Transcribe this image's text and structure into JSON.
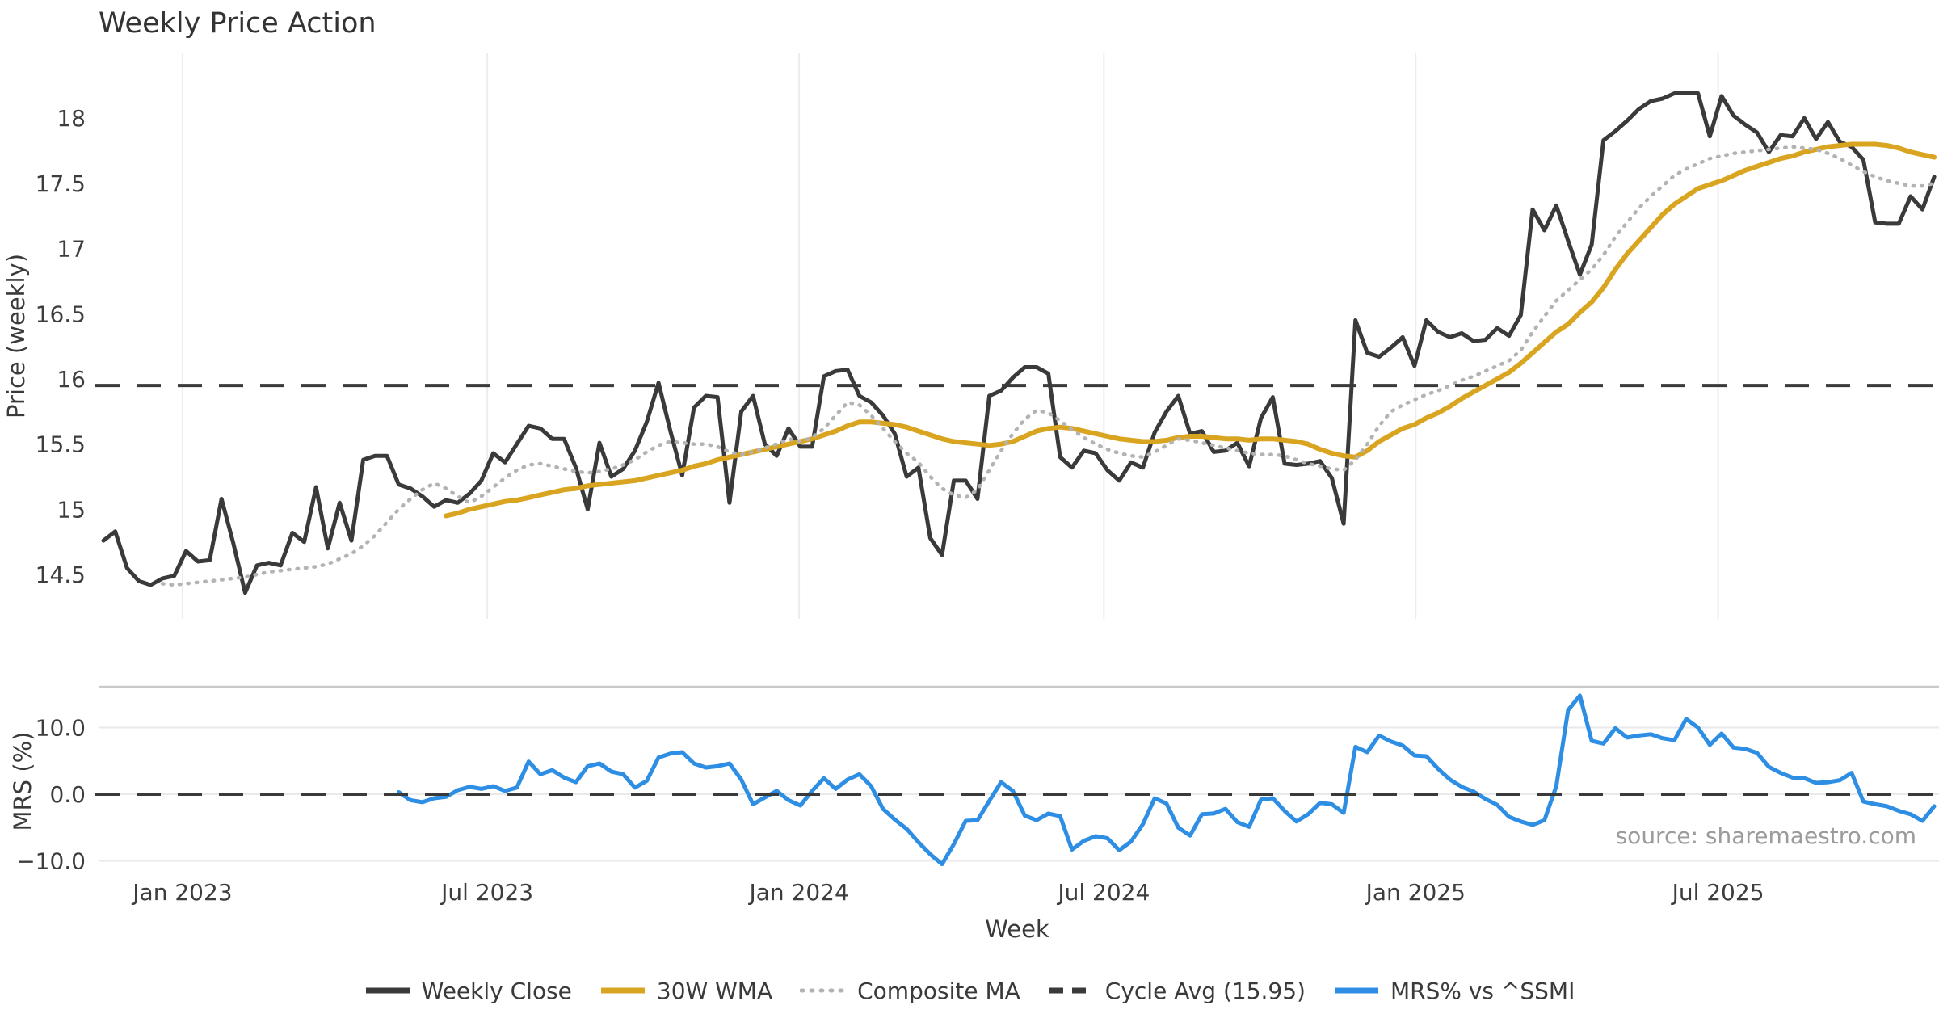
{
  "title": "Weekly Price Action",
  "axes": {
    "price_label": "Price (weekly)",
    "mrs_label": "MRS (%)",
    "x_label": "Week"
  },
  "source": "source: sharemaestro.com",
  "colors": {
    "close": "#3A3A3A",
    "wma": "#D9A521",
    "composite": "#B3B3B3",
    "cycle": "#3A3A3A",
    "mrs": "#2D8EE3",
    "grid_vertical": "#ECECF1",
    "grid_horizontal": "#E9E9EC",
    "panel_border": "#C9C9C9",
    "text": "#3A3A3A",
    "muted": "#9B9B9B"
  },
  "chart_data": {
    "type": "line",
    "title": "Weekly Price Action",
    "x_label": "Week",
    "x_unit": "week_index",
    "x_ticks": [
      {
        "label": "Jan 2023",
        "week": 6.7
      },
      {
        "label": "Jul 2023",
        "week": 32.5
      },
      {
        "label": "Jan 2024",
        "week": 58.9
      },
      {
        "label": "Jul 2024",
        "week": 84.7
      },
      {
        "label": "Jan 2025",
        "week": 111.1
      },
      {
        "label": "Jul 2025",
        "week": 136.7
      }
    ],
    "panels": [
      {
        "name": "price",
        "y_label": "Price (weekly)",
        "ylim": [
          14.05,
          18.5
        ],
        "grid": "vertical",
        "y_ticks": [
          {
            "label": "18",
            "value": 18
          },
          {
            "label": "17.5",
            "value": 17.5
          },
          {
            "label": "17",
            "value": 17
          },
          {
            "label": "16.5",
            "value": 16.5
          },
          {
            "label": "16",
            "value": 16
          },
          {
            "label": "15.5",
            "value": 15.5
          },
          {
            "label": "15",
            "value": 15
          },
          {
            "label": "14.5",
            "value": 14.5
          }
        ],
        "series": [
          {
            "name": "Weekly Close",
            "color": "#3A3A3A",
            "style": "solid",
            "width": 5,
            "values": [
              14.76,
              14.83,
              14.55,
              14.45,
              14.42,
              14.47,
              14.49,
              14.68,
              14.6,
              14.61,
              15.08,
              14.74,
              14.36,
              14.57,
              14.59,
              14.57,
              14.82,
              14.75,
              15.17,
              14.7,
              15.05,
              14.76,
              15.38,
              15.41,
              15.41,
              15.19,
              15.16,
              15.1,
              15.02,
              15.07,
              15.05,
              15.12,
              15.22,
              15.43,
              15.36,
              15.5,
              15.64,
              15.62,
              15.54,
              15.54,
              15.32,
              15.0,
              15.51,
              15.25,
              15.31,
              15.45,
              15.67,
              15.97,
              15.6,
              15.26,
              15.78,
              15.87,
              15.86,
              15.05,
              15.75,
              15.87,
              15.5,
              15.41,
              15.62,
              15.48,
              15.48,
              16.02,
              16.06,
              16.07,
              15.87,
              15.82,
              15.72,
              15.58,
              15.25,
              15.32,
              14.78,
              14.65,
              15.22,
              15.22,
              15.08,
              15.87,
              15.91,
              16.01,
              16.09,
              16.09,
              16.04,
              15.4,
              15.32,
              15.45,
              15.43,
              15.3,
              15.22,
              15.36,
              15.32,
              15.59,
              15.75,
              15.87,
              15.58,
              15.6,
              15.44,
              15.45,
              15.51,
              15.33,
              15.7,
              15.86,
              15.35,
              15.34,
              15.35,
              15.37,
              15.24,
              14.89,
              16.45,
              16.2,
              16.17,
              16.24,
              16.32,
              16.1,
              16.45,
              16.36,
              16.32,
              16.35,
              16.29,
              16.3,
              16.39,
              16.33,
              16.49,
              17.3,
              17.14,
              17.33,
              17.06,
              16.8,
              17.03,
              17.83,
              17.9,
              17.98,
              18.07,
              18.13,
              18.15,
              18.19,
              18.19,
              18.19,
              17.86,
              18.17,
              18.02,
              17.95,
              17.89,
              17.74,
              17.87,
              17.86,
              18.0,
              17.84,
              17.97,
              17.82,
              17.78,
              17.68,
              17.2,
              17.19,
              17.19,
              17.4,
              17.3,
              17.55
            ]
          },
          {
            "name": "30W WMA",
            "color": "#D9A521",
            "style": "solid",
            "width": 6,
            "values": [
              null,
              null,
              null,
              null,
              null,
              null,
              null,
              null,
              null,
              null,
              null,
              null,
              null,
              null,
              null,
              null,
              null,
              null,
              null,
              null,
              null,
              null,
              null,
              null,
              null,
              null,
              null,
              null,
              null,
              14.95,
              14.97,
              15.0,
              15.02,
              15.04,
              15.06,
              15.07,
              15.09,
              15.11,
              15.13,
              15.15,
              15.16,
              15.18,
              15.19,
              15.2,
              15.21,
              15.22,
              15.24,
              15.26,
              15.28,
              15.3,
              15.33,
              15.35,
              15.38,
              15.4,
              15.42,
              15.44,
              15.46,
              15.48,
              15.5,
              15.52,
              15.54,
              15.57,
              15.6,
              15.64,
              15.67,
              15.67,
              15.66,
              15.65,
              15.63,
              15.6,
              15.57,
              15.54,
              15.52,
              15.51,
              15.5,
              15.49,
              15.5,
              15.52,
              15.56,
              15.6,
              15.62,
              15.63,
              15.62,
              15.6,
              15.58,
              15.56,
              15.54,
              15.53,
              15.52,
              15.52,
              15.53,
              15.55,
              15.56,
              15.56,
              15.55,
              15.54,
              15.54,
              15.53,
              15.54,
              15.54,
              15.53,
              15.52,
              15.5,
              15.46,
              15.43,
              15.41,
              15.4,
              15.45,
              15.52,
              15.57,
              15.62,
              15.65,
              15.7,
              15.74,
              15.79,
              15.85,
              15.9,
              15.95,
              16.0,
              16.05,
              16.12,
              16.2,
              16.28,
              16.36,
              16.42,
              16.51,
              16.59,
              16.7,
              16.84,
              16.96,
              17.06,
              17.16,
              17.26,
              17.34,
              17.4,
              17.46,
              17.49,
              17.52,
              17.56,
              17.6,
              17.63,
              17.66,
              17.69,
              17.71,
              17.74,
              17.76,
              17.78,
              17.79,
              17.8,
              17.8,
              17.8,
              17.79,
              17.77,
              17.74,
              17.72,
              17.7
            ]
          },
          {
            "name": "Composite MA",
            "color": "#B3B3B3",
            "style": "dotted",
            "width": 4.5,
            "values": [
              null,
              null,
              null,
              null,
              null,
              14.43,
              14.42,
              14.43,
              14.44,
              14.45,
              14.46,
              14.47,
              14.48,
              14.5,
              14.52,
              14.53,
              14.54,
              14.55,
              14.56,
              14.58,
              14.62,
              14.66,
              14.72,
              14.8,
              14.9,
              15.0,
              15.08,
              15.15,
              15.2,
              15.16,
              15.1,
              15.05,
              15.1,
              15.17,
              15.24,
              15.3,
              15.34,
              15.35,
              15.33,
              15.31,
              15.29,
              15.28,
              15.29,
              15.31,
              15.34,
              15.38,
              15.44,
              15.49,
              15.52,
              15.51,
              15.5,
              15.5,
              15.48,
              15.44,
              15.42,
              15.44,
              15.47,
              15.5,
              15.54,
              15.52,
              15.55,
              15.62,
              15.72,
              15.82,
              15.8,
              15.72,
              15.62,
              15.52,
              15.43,
              15.36,
              15.25,
              15.16,
              15.11,
              15.09,
              15.15,
              15.3,
              15.45,
              15.58,
              15.69,
              15.76,
              15.74,
              15.68,
              15.61,
              15.55,
              15.5,
              15.46,
              15.43,
              15.41,
              15.4,
              15.44,
              15.49,
              15.54,
              15.53,
              15.51,
              15.49,
              15.47,
              15.45,
              15.43,
              15.42,
              15.42,
              15.41,
              15.38,
              15.35,
              15.33,
              15.31,
              15.3,
              15.38,
              15.5,
              15.64,
              15.75,
              15.8,
              15.84,
              15.88,
              15.91,
              15.95,
              15.99,
              16.02,
              16.06,
              16.1,
              16.14,
              16.22,
              16.36,
              16.48,
              16.6,
              16.68,
              16.76,
              16.84,
              16.95,
              17.09,
              17.2,
              17.31,
              17.4,
              17.48,
              17.56,
              17.61,
              17.65,
              17.69,
              17.71,
              17.73,
              17.74,
              17.75,
              17.76,
              17.77,
              17.78,
              17.77,
              17.76,
              17.73,
              17.69,
              17.64,
              17.59,
              17.55,
              17.52,
              17.5,
              17.48,
              17.48,
              17.5
            ]
          },
          {
            "name": "Cycle Avg (15.95)",
            "color": "#3A3A3A",
            "style": "dashed",
            "width": 4,
            "const": 15.95
          }
        ]
      },
      {
        "name": "mrs",
        "y_label": "MRS (%)",
        "ylim": [
          -11.6,
          16.1
        ],
        "grid": "horizontal",
        "y_ticks": [
          {
            "label": "10.0",
            "value": 10
          },
          {
            "label": "0.0",
            "value": 0
          },
          {
            "label": "−10.0",
            "value": -10
          }
        ],
        "series": [
          {
            "name": "MRS% vs ^SSMI",
            "color": "#2D8EE3",
            "style": "solid",
            "width": 5,
            "values": [
              null,
              null,
              null,
              null,
              null,
              null,
              null,
              null,
              null,
              null,
              null,
              null,
              null,
              null,
              null,
              null,
              null,
              null,
              null,
              null,
              null,
              null,
              null,
              null,
              null,
              0.3,
              -0.9,
              -1.2,
              -0.6,
              -0.4,
              0.6,
              1.1,
              0.8,
              1.2,
              0.5,
              1.0,
              4.9,
              3.0,
              3.6,
              2.5,
              1.8,
              4.2,
              4.6,
              3.4,
              3.0,
              1.0,
              2.0,
              5.5,
              6.1,
              6.3,
              4.6,
              4.0,
              4.2,
              4.6,
              2.2,
              -1.5,
              -0.5,
              0.5,
              -0.9,
              -1.7,
              0.5,
              2.4,
              0.8,
              2.2,
              3.0,
              1.2,
              -2.2,
              -3.8,
              -5.2,
              -7.2,
              -9.0,
              -10.5,
              -7.5,
              -4.0,
              -3.9,
              -1.0,
              1.8,
              0.5,
              -3.2,
              -3.9,
              -2.9,
              -3.3,
              -8.3,
              -7.0,
              -6.3,
              -6.6,
              -8.4,
              -7.1,
              -4.5,
              -0.6,
              -1.4,
              -5.0,
              -6.2,
              -3.0,
              -2.9,
              -2.2,
              -4.2,
              -4.9,
              -0.8,
              -0.6,
              -2.5,
              -4.1,
              -3.0,
              -1.3,
              -1.5,
              -2.8,
              7.1,
              6.3,
              8.8,
              7.9,
              7.3,
              5.8,
              5.7,
              3.8,
              2.2,
              1.1,
              0.4,
              -0.7,
              -1.6,
              -3.4,
              -4.1,
              -4.6,
              -3.9,
              1.2,
              12.6,
              14.8,
              8.0,
              7.6,
              9.9,
              8.5,
              8.8,
              9.0,
              8.4,
              8.1,
              11.3,
              10.0,
              7.4,
              9.1,
              7.0,
              6.8,
              6.2,
              4.1,
              3.2,
              2.5,
              2.4,
              1.7,
              1.8,
              2.1,
              3.2,
              -1.1,
              -1.5,
              -1.8,
              -2.5,
              -3.0,
              -4.0,
              -1.8
            ]
          },
          {
            "name": "Zero",
            "color": "#3A3A3A",
            "style": "dashed",
            "width": 4,
            "const": 0,
            "legend": false
          }
        ]
      }
    ],
    "legend": [
      {
        "label": "Weekly Close",
        "color": "#3A3A3A",
        "style": "solid"
      },
      {
        "label": "30W WMA",
        "color": "#D9A521",
        "style": "solid"
      },
      {
        "label": "Composite MA",
        "color": "#B3B3B3",
        "style": "dotted"
      },
      {
        "label": "Cycle Avg (15.95)",
        "color": "#3A3A3A",
        "style": "dashed"
      },
      {
        "label": "MRS% vs ^SSMI",
        "color": "#2D8EE3",
        "style": "solid"
      }
    ]
  }
}
